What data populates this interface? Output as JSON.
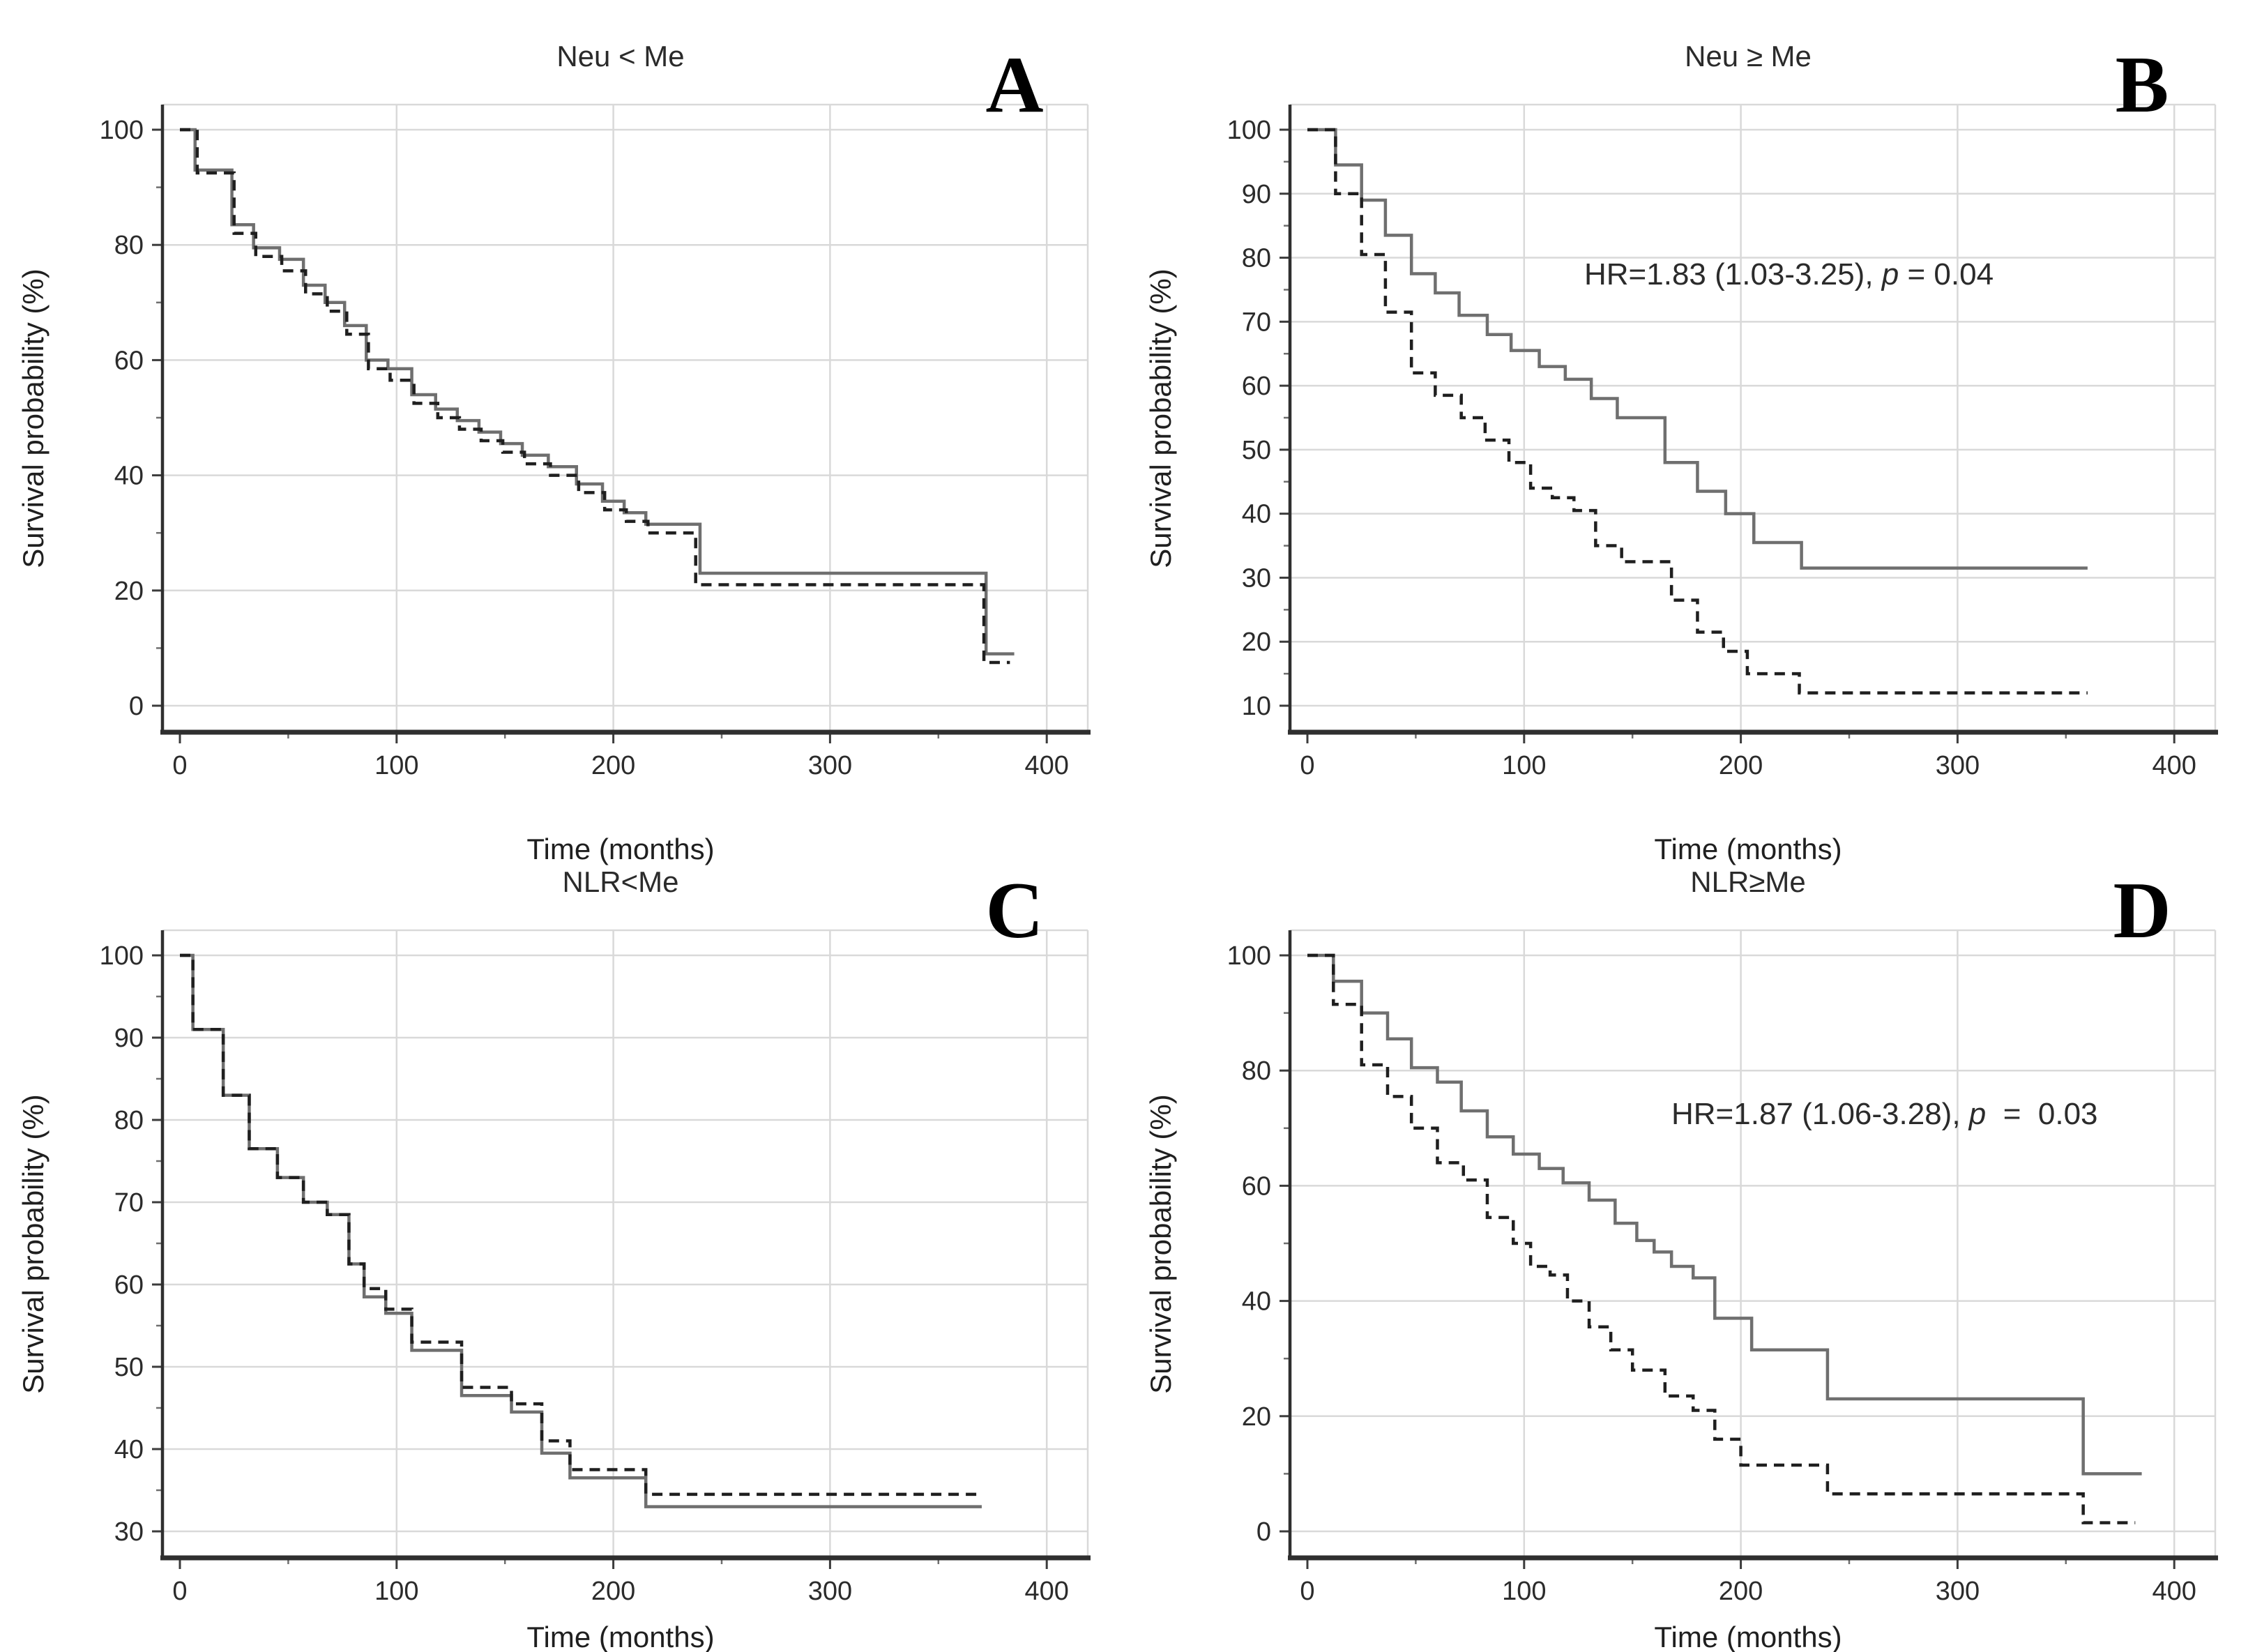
{
  "figure": {
    "background_color": "#ffffff",
    "grid_color": "#d9d9d9",
    "solid_curve_color": "#6f6f6f",
    "dashed_curve_color": "#1f1f1f",
    "xlabel": "Time (months)",
    "ylabel": "Survival probability (%)"
  },
  "chart_data": [
    {
      "type": "line",
      "panel_letter": "A",
      "title": "Neu < Me",
      "xlabel": "Time (months)",
      "ylabel": "Survival probability (%)",
      "xlim": [
        0,
        410
      ],
      "ylim": [
        0,
        100
      ],
      "xticks": [
        0,
        100,
        200,
        300,
        400
      ],
      "xticks_minor": [
        50,
        150,
        250,
        350
      ],
      "yticks": [
        0,
        20,
        40,
        60,
        80,
        100
      ],
      "grid": true,
      "legend_position": "none",
      "annotation": null,
      "series": [
        {
          "name": "solid group",
          "line_style": "solid",
          "color": "#6f6f6f",
          "steps": [
            [
              0,
              100
            ],
            [
              7,
              93
            ],
            [
              24,
              83.5
            ],
            [
              34,
              79.5
            ],
            [
              46,
              77.5
            ],
            [
              57,
              73
            ],
            [
              67,
              70
            ],
            [
              76,
              66
            ],
            [
              86,
              60
            ],
            [
              96,
              58.5
            ],
            [
              107,
              54
            ],
            [
              118,
              51.5
            ],
            [
              128,
              49.5
            ],
            [
              138,
              47.5
            ],
            [
              148,
              45.5
            ],
            [
              158,
              43.5
            ],
            [
              170,
              41.5
            ],
            [
              183,
              38.5
            ],
            [
              195,
              35.5
            ],
            [
              205,
              33.5
            ],
            [
              215,
              31.5
            ],
            [
              240,
              23
            ],
            [
              372,
              9
            ],
            [
              385,
              9
            ]
          ]
        },
        {
          "name": "dashed group",
          "line_style": "dashed",
          "color": "#1f1f1f",
          "steps": [
            [
              0,
              100
            ],
            [
              8,
              92.5
            ],
            [
              25,
              82
            ],
            [
              35,
              78
            ],
            [
              47,
              75.5
            ],
            [
              58,
              71.5
            ],
            [
              68,
              68.5
            ],
            [
              77,
              64.5
            ],
            [
              87,
              58.5
            ],
            [
              97,
              56.5
            ],
            [
              108,
              52.5
            ],
            [
              119,
              50
            ],
            [
              129,
              48
            ],
            [
              139,
              46
            ],
            [
              149,
              44
            ],
            [
              159,
              42
            ],
            [
              171,
              40
            ],
            [
              184,
              37
            ],
            [
              196,
              34
            ],
            [
              206,
              32
            ],
            [
              216,
              30
            ],
            [
              238,
              21
            ],
            [
              371,
              7.5
            ],
            [
              383,
              7.5
            ]
          ]
        }
      ]
    },
    {
      "type": "line",
      "panel_letter": "B",
      "title": "Neu ≥ Me",
      "xlabel": "Time (months)",
      "ylabel": "Survival probability (%)",
      "xlim": [
        0,
        410
      ],
      "ylim": [
        10,
        100
      ],
      "xticks": [
        0,
        100,
        200,
        300,
        400
      ],
      "xticks_minor": [
        50,
        150,
        250,
        350
      ],
      "yticks": [
        10,
        20,
        30,
        40,
        50,
        60,
        70,
        80,
        90,
        100
      ],
      "grid": true,
      "legend_position": "none",
      "annotation": {
        "prefix": "HR=1.83 (1.03-3.25), ",
        "p": "p",
        "suffix": " = 0.04"
      },
      "series": [
        {
          "name": "solid group",
          "line_style": "solid",
          "color": "#6f6f6f",
          "steps": [
            [
              0,
              100
            ],
            [
              13,
              94.5
            ],
            [
              25,
              89
            ],
            [
              36,
              83.5
            ],
            [
              48,
              77.5
            ],
            [
              59,
              74.5
            ],
            [
              70,
              71
            ],
            [
              83,
              68
            ],
            [
              94,
              65.5
            ],
            [
              107,
              63
            ],
            [
              119,
              61
            ],
            [
              131,
              58
            ],
            [
              143,
              55
            ],
            [
              165,
              48
            ],
            [
              180,
              43.5
            ],
            [
              193,
              40
            ],
            [
              206,
              35.5
            ],
            [
              228,
              31.5
            ],
            [
              360,
              31.5
            ]
          ]
        },
        {
          "name": "dashed group",
          "line_style": "dashed",
          "color": "#1f1f1f",
          "steps": [
            [
              0,
              100
            ],
            [
              13,
              90
            ],
            [
              25,
              80.5
            ],
            [
              36,
              71.5
            ],
            [
              48,
              62
            ],
            [
              59,
              58.5
            ],
            [
              71,
              55
            ],
            [
              82,
              51.5
            ],
            [
              93,
              48
            ],
            [
              103,
              44
            ],
            [
              113,
              42.5
            ],
            [
              123,
              40.5
            ],
            [
              133,
              35
            ],
            [
              145,
              32.5
            ],
            [
              168,
              26.5
            ],
            [
              180,
              21.5
            ],
            [
              192,
              18.5
            ],
            [
              203,
              15
            ],
            [
              227,
              12
            ],
            [
              360,
              12
            ]
          ]
        }
      ]
    },
    {
      "type": "line",
      "panel_letter": "C",
      "title": "NLR<Me",
      "xlabel": "Time (months)",
      "ylabel": "Survival probability (%)",
      "xlim": [
        0,
        410
      ],
      "ylim": [
        30,
        100
      ],
      "xticks": [
        0,
        100,
        200,
        300,
        400
      ],
      "xticks_minor": [
        50,
        150,
        250,
        350
      ],
      "yticks": [
        30,
        40,
        50,
        60,
        70,
        80,
        90,
        100
      ],
      "grid": true,
      "legend_position": "none",
      "annotation": null,
      "series": [
        {
          "name": "solid group",
          "line_style": "solid",
          "color": "#6f6f6f",
          "steps": [
            [
              0,
              100
            ],
            [
              6,
              91
            ],
            [
              20,
              83
            ],
            [
              32,
              76.5
            ],
            [
              45,
              73
            ],
            [
              57,
              70
            ],
            [
              68,
              68.5
            ],
            [
              78,
              62.5
            ],
            [
              85,
              58.5
            ],
            [
              95,
              56.5
            ],
            [
              107,
              52
            ],
            [
              130,
              46.5
            ],
            [
              153,
              44.5
            ],
            [
              167,
              39.5
            ],
            [
              180,
              36.5
            ],
            [
              215,
              33
            ],
            [
              370,
              33
            ]
          ]
        },
        {
          "name": "dashed group",
          "line_style": "dashed",
          "color": "#1f1f1f",
          "steps": [
            [
              0,
              100
            ],
            [
              6,
              91
            ],
            [
              20,
              83
            ],
            [
              32,
              76.5
            ],
            [
              45,
              73
            ],
            [
              57,
              70
            ],
            [
              68,
              68.5
            ],
            [
              78,
              62.5
            ],
            [
              85,
              59.5
            ],
            [
              95,
              57
            ],
            [
              107,
              53
            ],
            [
              130,
              47.5
            ],
            [
              153,
              45.5
            ],
            [
              167,
              41
            ],
            [
              180,
              37.5
            ],
            [
              215,
              34.5
            ],
            [
              370,
              34.5
            ]
          ]
        }
      ]
    },
    {
      "type": "line",
      "panel_letter": "D",
      "title": "NLR≥Me",
      "xlabel": "Time (months)",
      "ylabel": "Survival probability (%)",
      "xlim": [
        0,
        410
      ],
      "ylim": [
        0,
        100
      ],
      "xticks": [
        0,
        100,
        200,
        300,
        400
      ],
      "xticks_minor": [
        50,
        150,
        250,
        350
      ],
      "yticks": [
        0,
        20,
        40,
        60,
        80,
        100
      ],
      "grid": true,
      "legend_position": "none",
      "annotation": {
        "prefix": "HR=1.87 (1.06-3.28), ",
        "p": "p",
        "suffix": "  =  0.03"
      },
      "series": [
        {
          "name": "solid group",
          "line_style": "solid",
          "color": "#6f6f6f",
          "steps": [
            [
              0,
              100
            ],
            [
              12,
              95.5
            ],
            [
              25,
              90
            ],
            [
              37,
              85.5
            ],
            [
              48,
              80.5
            ],
            [
              60,
              78
            ],
            [
              71,
              73
            ],
            [
              83,
              68.5
            ],
            [
              95,
              65.5
            ],
            [
              107,
              63
            ],
            [
              118,
              60.5
            ],
            [
              130,
              57.5
            ],
            [
              142,
              53.5
            ],
            [
              152,
              50.5
            ],
            [
              160,
              48.5
            ],
            [
              168,
              46
            ],
            [
              178,
              44
            ],
            [
              188,
              37
            ],
            [
              205,
              31.5
            ],
            [
              240,
              23
            ],
            [
              358,
              10
            ],
            [
              385,
              10
            ]
          ]
        },
        {
          "name": "dashed group",
          "line_style": "dashed",
          "color": "#1f1f1f",
          "steps": [
            [
              0,
              100
            ],
            [
              12,
              91.5
            ],
            [
              25,
              81
            ],
            [
              37,
              75.5
            ],
            [
              48,
              70
            ],
            [
              60,
              64
            ],
            [
              72,
              61
            ],
            [
              83,
              54.5
            ],
            [
              95,
              50
            ],
            [
              103,
              46
            ],
            [
              112,
              44.5
            ],
            [
              120,
              40
            ],
            [
              130,
              35.5
            ],
            [
              140,
              31.5
            ],
            [
              150,
              28
            ],
            [
              165,
              23.5
            ],
            [
              178,
              21
            ],
            [
              188,
              16
            ],
            [
              200,
              11.5
            ],
            [
              240,
              6.5
            ],
            [
              358,
              1.5
            ],
            [
              382,
              1.5
            ]
          ]
        }
      ]
    }
  ]
}
